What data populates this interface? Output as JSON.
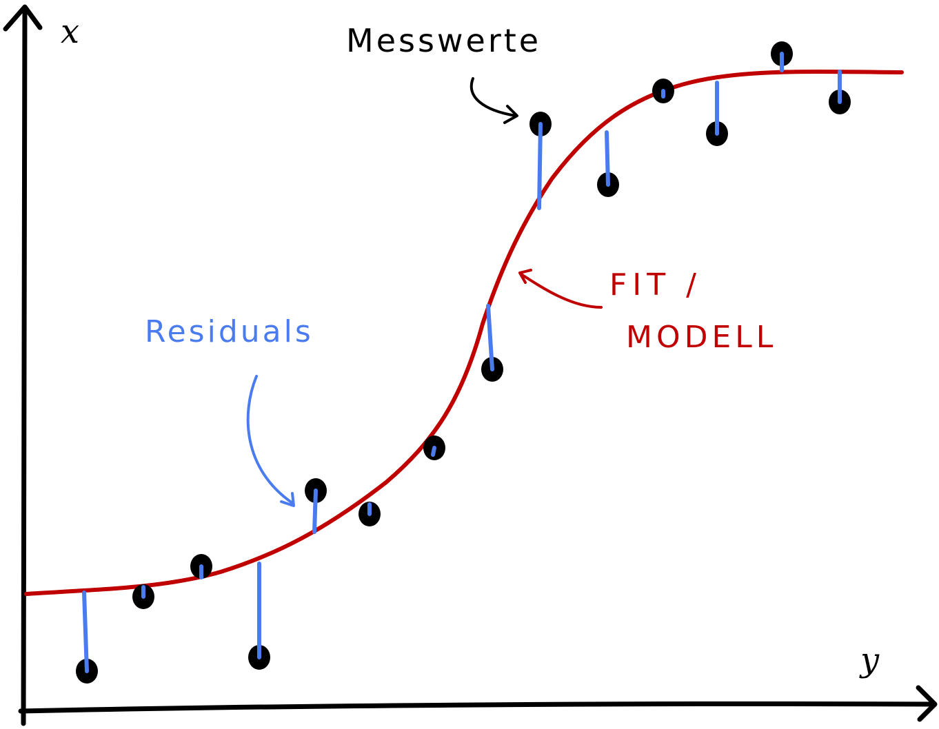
{
  "axes": {
    "vertical_label": "x",
    "horizontal_label": "y"
  },
  "annotations": {
    "measurements": "Messwerte",
    "residuals": "Residuals",
    "fit_line1": "FIT /",
    "fit_line2": "MODELL"
  },
  "colors": {
    "axis": "#000000",
    "points": "#000000",
    "residuals": "#4a7cf0",
    "model": "#c00000",
    "annotation_messwerte": "#000000",
    "annotation_residuals": "#4a7cf0",
    "annotation_fit": "#c00000"
  },
  "legend": "none",
  "grid": false
}
